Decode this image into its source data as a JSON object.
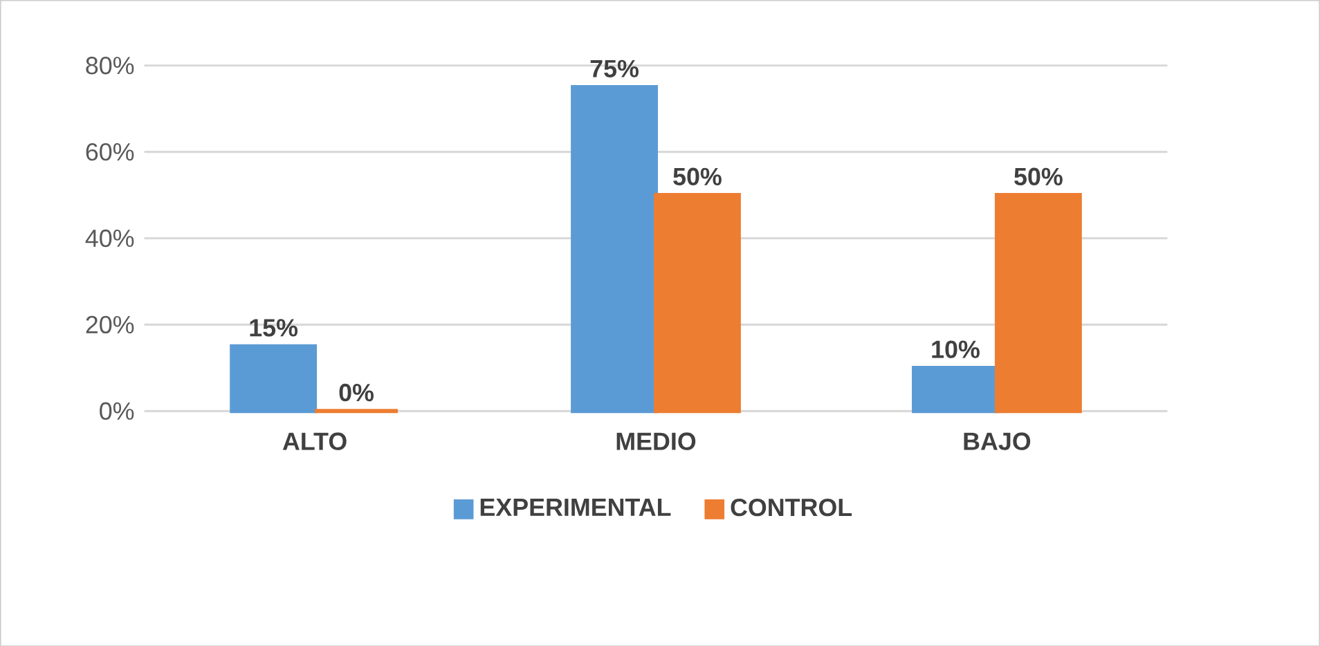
{
  "chart_data": {
    "type": "bar",
    "categories": [
      "ALTO",
      "MEDIO",
      "BAJO"
    ],
    "series": [
      {
        "name": "EXPERIMENTAL",
        "color": "#5b9bd5",
        "values": [
          15,
          75,
          10
        ],
        "value_labels": [
          "15%",
          "75%",
          "10%"
        ]
      },
      {
        "name": "CONTROL",
        "color": "#ed7d31",
        "values": [
          0,
          50,
          50
        ],
        "value_labels": [
          "0%",
          "50%",
          "50%"
        ]
      }
    ],
    "ylim": [
      0,
      80
    ],
    "yticks": [
      {
        "value": 0,
        "label": "0%"
      },
      {
        "value": 20,
        "label": "20%"
      },
      {
        "value": 40,
        "label": "40%"
      },
      {
        "value": 60,
        "label": "60%"
      },
      {
        "value": 80,
        "label": "80%"
      }
    ],
    "grid": "y",
    "legend": "bottom"
  }
}
